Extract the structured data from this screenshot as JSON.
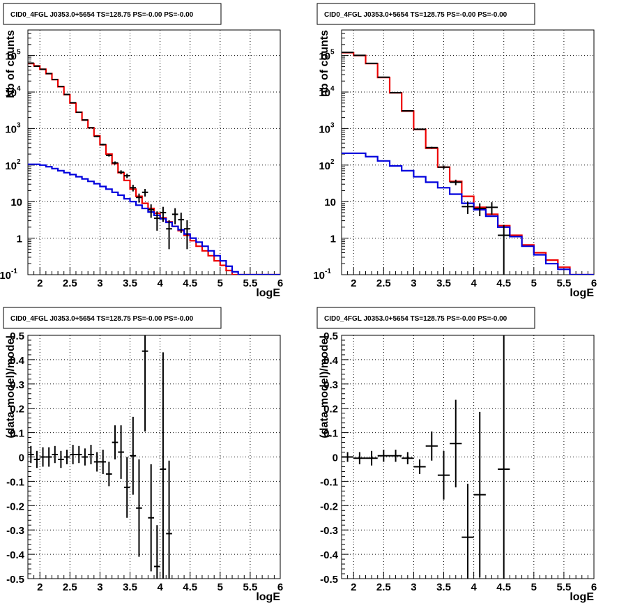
{
  "chart_data": [
    {
      "type": "line",
      "title": "CID0_4FGL J0353.0+5654 TS=128.75 PS=-0.00 PS=-0.00",
      "xlabel": "logE",
      "ylabel": "Nb of counts",
      "xlim": [
        1.8,
        6.0
      ],
      "ylim": [
        0.1,
        500000
      ],
      "yscale": "log",
      "grid": true,
      "xticks": [
        "2",
        "2.5",
        "3",
        "3.5",
        "4",
        "4.5",
        "5",
        "5.5",
        "6"
      ],
      "yticks": [
        "10^-1",
        "1",
        "10",
        "10^2",
        "10^3",
        "10^4",
        "10^5"
      ],
      "bin_edges": [
        1.8,
        1.9,
        2.0,
        2.1,
        2.2,
        2.3,
        2.4,
        2.5,
        2.6,
        2.7,
        2.8,
        2.9,
        3.0,
        3.1,
        3.2,
        3.3,
        3.4,
        3.5,
        3.6,
        3.7,
        3.8,
        3.9,
        4.0,
        4.1,
        4.2,
        4.3,
        4.4,
        4.5,
        4.6,
        4.7,
        4.8,
        4.9,
        5.0,
        5.1,
        5.2,
        5.3,
        5.4,
        5.5,
        5.6,
        5.7,
        5.8,
        5.9,
        6.0
      ],
      "series": [
        {
          "color": "#ee0000",
          "kind": "step",
          "values": [
            60000,
            52000,
            42000,
            32000,
            22000,
            14000,
            8500,
            5000,
            2800,
            1700,
            1050,
            630,
            360,
            200,
            110,
            62,
            38,
            22,
            14,
            9,
            6.5,
            4.8,
            3.6,
            2.8,
            2.1,
            1.6,
            1.2,
            0.85,
            0.6,
            0.45,
            0.33,
            0.24,
            0.18,
            0.13,
            0.1,
            0.1,
            0.1,
            0.1,
            0.1,
            0.1,
            0.1,
            0.1
          ]
        },
        {
          "color": "#0000dd",
          "kind": "step",
          "values": [
            105,
            105,
            100,
            90,
            80,
            70,
            62,
            55,
            48,
            42,
            36,
            31,
            26,
            22,
            18,
            15,
            12,
            10,
            8,
            6.5,
            5.2,
            4.2,
            3.4,
            2.7,
            2.1,
            1.7,
            1.3,
            1.0,
            0.78,
            0.6,
            0.45,
            0.33,
            0.24,
            0.17,
            0.12,
            0.1,
            0.1,
            0.1,
            0.1,
            0.1,
            0.1,
            0.1
          ]
        },
        {
          "color": "#000000",
          "kind": "points",
          "x": [
            1.85,
            1.95,
            2.05,
            2.15,
            2.25,
            2.35,
            2.45,
            2.55,
            2.65,
            2.75,
            2.85,
            2.95,
            3.05,
            3.15,
            3.25,
            3.35,
            3.45,
            3.55,
            3.65,
            3.75,
            3.85,
            3.95,
            4.05,
            4.15,
            4.25,
            4.35,
            4.45
          ],
          "y": [
            62000,
            51000,
            42000,
            32000,
            22000,
            14200,
            8600,
            5100,
            2800,
            1720,
            1050,
            610,
            365,
            185,
            115,
            64,
            51,
            24,
            13,
            18,
            6,
            3.5,
            5,
            1.8,
            4.5,
            3.2,
            1.8
          ],
          "err": [
            250,
            220,
            200,
            180,
            150,
            120,
            93,
            71,
            53,
            41,
            32,
            25,
            19,
            14,
            11,
            8,
            7,
            5,
            3.6,
            4.2,
            2.4,
            1.9,
            2.2,
            1.3,
            2.1,
            1.8,
            1.3
          ]
        }
      ]
    },
    {
      "type": "line",
      "title": "CID0_4FGL J0353.0+5654 TS=128.75 PS=-0.00 PS=-0.00",
      "xlabel": "logE",
      "ylabel": "nb of counts",
      "xlim": [
        1.8,
        6.0
      ],
      "ylim": [
        0.1,
        500000
      ],
      "yscale": "log",
      "grid": true,
      "xticks": [
        "2",
        "2.5",
        "3",
        "3.5",
        "4",
        "4.5",
        "5",
        "5.5",
        "6"
      ],
      "yticks": [
        "10^-1",
        "1",
        "10",
        "10^2",
        "10^3",
        "10^4",
        "10^5"
      ],
      "bin_edges": [
        1.8,
        2.0,
        2.2,
        2.4,
        2.6,
        2.8,
        3.0,
        3.2,
        3.4,
        3.6,
        3.8,
        4.0,
        4.2,
        4.4,
        4.6,
        4.8,
        5.0,
        5.2,
        5.4,
        5.6,
        5.8,
        6.0
      ],
      "series": [
        {
          "color": "#ee0000",
          "kind": "step",
          "values": [
            120000,
            100000,
            60000,
            25000,
            9500,
            3000,
            950,
            290,
            88,
            36,
            14,
            7,
            4.5,
            2.2,
            1.2,
            0.65,
            0.4,
            0.25,
            0.16,
            0.1,
            0.1
          ]
        },
        {
          "color": "#0000dd",
          "kind": "step",
          "values": [
            210,
            210,
            170,
            130,
            95,
            70,
            48,
            34,
            24,
            16,
            9,
            6,
            4,
            2,
            1.1,
            0.6,
            0.35,
            0.2,
            0.14,
            0.1,
            0.1
          ]
        },
        {
          "color": "#000000",
          "kind": "points",
          "x": [
            1.9,
            2.1,
            2.3,
            2.5,
            2.7,
            2.9,
            3.1,
            3.3,
            3.5,
            3.7,
            3.9,
            4.1,
            4.3,
            4.5
          ],
          "y": [
            122000,
            101000,
            61000,
            25400,
            9600,
            3050,
            960,
            300,
            88,
            34,
            7.3,
            6.5,
            7,
            1.2
          ],
          "err": [
            350,
            320,
            250,
            160,
            98,
            55,
            31,
            17,
            9.4,
            5.8,
            2.7,
            2.5,
            2.6,
            1.1
          ]
        }
      ]
    },
    {
      "type": "scatter",
      "title": "CID0_4FGL J0353.0+5654 TS=128.75 PS=-0.00 PS=-0.00",
      "xlabel": "logE",
      "ylabel": "(data-model)/model",
      "xlim": [
        1.8,
        6.0
      ],
      "ylim": [
        -0.5,
        0.5
      ],
      "yscale": "linear",
      "grid": true,
      "xticks": [
        "2",
        "2.5",
        "3",
        "3.5",
        "4",
        "4.5",
        "5",
        "5.5",
        "6"
      ],
      "yticks": [
        "-0.5",
        "-0.4",
        "-0.3",
        "-0.2",
        "-0.1",
        "0",
        "0.1",
        "0.2",
        "0.3",
        "0.4",
        "0.5"
      ],
      "xerr": 0.05,
      "series": [
        {
          "color": "#000000",
          "kind": "points",
          "x": [
            1.85,
            1.95,
            2.05,
            2.15,
            2.25,
            2.35,
            2.45,
            2.55,
            2.65,
            2.75,
            2.85,
            2.95,
            3.05,
            3.15,
            3.25,
            3.35,
            3.45,
            3.55,
            3.65,
            3.75,
            3.85,
            3.95,
            4.05,
            4.15
          ],
          "y": [
            0.01,
            -0.01,
            0.0,
            0.0,
            0.01,
            -0.01,
            0.0,
            0.01,
            0.01,
            0.0,
            0.01,
            -0.02,
            -0.02,
            -0.07,
            0.06,
            0.02,
            -0.125,
            0.005,
            -0.21,
            0.435,
            -0.25,
            -0.45,
            -0.05,
            -0.315
          ],
          "err": [
            0.035,
            0.035,
            0.04,
            0.04,
            0.035,
            0.035,
            0.03,
            0.04,
            0.035,
            0.035,
            0.04,
            0.04,
            0.05,
            0.05,
            0.07,
            0.11,
            0.125,
            0.16,
            0.2,
            0.33,
            0.22,
            0.17,
            0.48,
            0.3
          ]
        }
      ]
    },
    {
      "type": "scatter",
      "title": "CID0_4FGL J0353.0+5654 TS=128.75 PS=-0.00 PS=-0.00",
      "xlabel": "logE",
      "ylabel": "(data-model)/model",
      "xlim": [
        1.8,
        6.0
      ],
      "ylim": [
        -0.5,
        0.5
      ],
      "yscale": "linear",
      "grid": true,
      "xticks": [
        "2",
        "2.5",
        "3",
        "3.5",
        "4",
        "4.5",
        "5",
        "5.5",
        "6"
      ],
      "yticks": [
        "-0.5",
        "-0.4",
        "-0.3",
        "-0.2",
        "-0.1",
        "0",
        "0.1",
        "0.2",
        "0.3",
        "0.4",
        "0.5"
      ],
      "xerr": 0.1,
      "series": [
        {
          "color": "#000000",
          "kind": "points",
          "x": [
            1.9,
            2.1,
            2.3,
            2.5,
            2.7,
            2.9,
            3.1,
            3.3,
            3.5,
            3.7,
            3.9,
            4.1,
            4.5
          ],
          "y": [
            0.0,
            -0.005,
            -0.005,
            0.005,
            0.005,
            -0.005,
            -0.04,
            0.045,
            -0.075,
            0.055,
            -0.33,
            -0.155,
            -0.05
          ],
          "err": [
            0.02,
            0.025,
            0.03,
            0.025,
            0.025,
            0.025,
            0.03,
            0.06,
            0.1,
            0.18,
            0.22,
            0.34,
            0.55
          ]
        }
      ]
    }
  ]
}
